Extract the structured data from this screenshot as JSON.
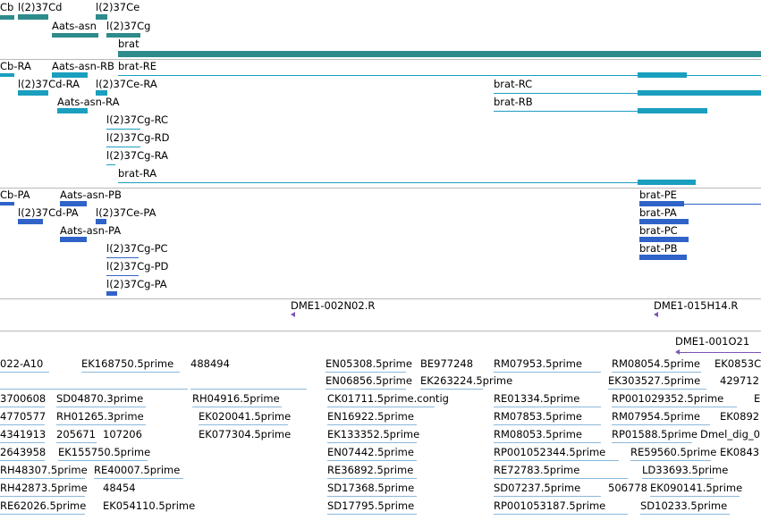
{
  "colors": {
    "gene": "#2e8b8b",
    "transcript": "#1a9fbf",
    "protein": "#2f63c8",
    "clone": "#7b55b5",
    "est": "#8ab8dc",
    "separator": "#b9b9b9"
  },
  "gene_track": {
    "labels": [
      "Cb",
      "l(2)37Cd",
      "l(2)37Ce",
      "Aats-asn",
      "l(2)37Cg",
      "brat"
    ]
  },
  "transcript_track": {
    "labels": [
      "Cb-RA",
      "Aats-asn-RB",
      "brat-RE",
      "l(2)37Cd-RA",
      "l(2)37Ce-RA",
      "brat-RC",
      "Aats-asn-RA",
      "brat-RB",
      "l(2)37Cg-RC",
      "l(2)37Cg-RD",
      "l(2)37Cg-RA",
      "brat-RA"
    ]
  },
  "protein_track": {
    "labels": [
      "Cb-PA",
      "Aats-asn-PB",
      "brat-PE",
      "l(2)37Cd-PA",
      "l(2)37Ce-PA",
      "brat-PA",
      "Aats-asn-PA",
      "brat-PC",
      "l(2)37Cg-PC",
      "brat-PB",
      "l(2)37Cg-PD",
      "l(2)37Cg-PA"
    ]
  },
  "clone_track": {
    "labels": [
      "DME1-002N02.R",
      "DME1-015H14.R",
      "DME1-001O21"
    ]
  },
  "est_track": {
    "labels": [
      "022-A10",
      "EK168750.5prime",
      "488494",
      "EN05308.5prime",
      "BE977248",
      "RM07953.5prime",
      "RM08054.5prime",
      "EK0853C",
      "EN06856.5prime",
      "EK263224.5prime",
      "EK303527.5prime",
      "429712",
      "3700608",
      "SD04870.3prime",
      "RH04916.5prime",
      "CK01711.5prime.contig",
      "RE01334.5prime",
      "RP001029352.5prime",
      "E",
      "4770577",
      "RH01265.3prime",
      "EK020041.5prime",
      "EN16922.5prime",
      "RM07853.5prime",
      "RM07954.5prime",
      "EK0892",
      "4341913",
      "205671",
      "107206",
      "EK077304.5prime",
      "EK133352.5prime",
      "RM08053.5prime",
      "RP01588.5prime",
      "Dmel_dig_0",
      "2643958",
      "EK155750.5prime",
      "EN07442.5prime",
      "RP001052344.5prime",
      "RE59560.5prime",
      "EK0843",
      "RH48307.5prime",
      "RE40007.5prime",
      "RE36892.5prime",
      "RE72783.5prime",
      "LD33693.5prime",
      "RH42873.5prime",
      "48454",
      "SD17368.5prime",
      "SD07237.5prime",
      "506778",
      "EK090141.5prime",
      "RE62026.5prime",
      "EK054110.5prime",
      "SD17795.5prime",
      "RP001053187.5prime",
      "SD10233.5prime"
    ]
  }
}
